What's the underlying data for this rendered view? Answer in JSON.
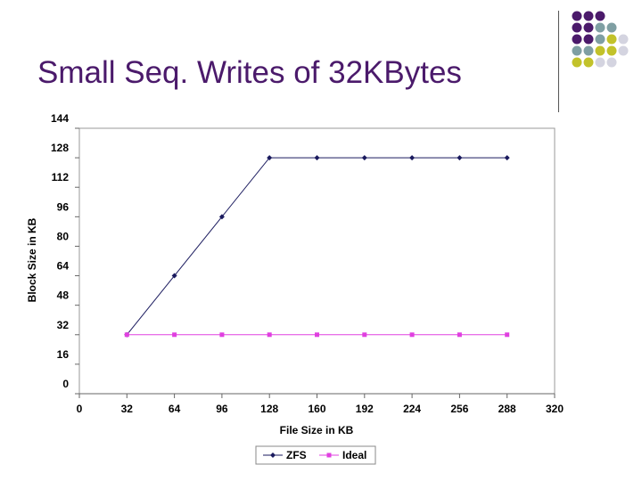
{
  "slide": {
    "title": "Small Seq. Writes of 32KBytes",
    "title_color": "#4b1a6b"
  },
  "decoration": {
    "dot_colors": [
      "#4b1a6b",
      "#7f9fa3",
      "#c2c22a",
      "#d4d4e0"
    ]
  },
  "chart_data": {
    "type": "line",
    "xlabel": "File Size in KB",
    "ylabel": "Block Size in KB",
    "xlim": [
      0,
      320
    ],
    "ylim": [
      0,
      144
    ],
    "xticks": [
      0,
      32,
      64,
      96,
      128,
      160,
      192,
      224,
      256,
      288,
      320
    ],
    "yticks": [
      0,
      16,
      32,
      48,
      64,
      80,
      96,
      112,
      128,
      144
    ],
    "grid": false,
    "legend_position": "bottom",
    "series": [
      {
        "name": "ZFS",
        "color": "#1a1a5e",
        "marker": "diamond",
        "x": [
          32,
          64,
          96,
          128,
          160,
          192,
          224,
          256,
          288
        ],
        "y": [
          32,
          64,
          96,
          128,
          128,
          128,
          128,
          128,
          128
        ]
      },
      {
        "name": "Ideal",
        "color": "#e040e0",
        "marker": "square",
        "x": [
          32,
          64,
          96,
          128,
          160,
          192,
          224,
          256,
          288
        ],
        "y": [
          32,
          32,
          32,
          32,
          32,
          32,
          32,
          32,
          32
        ]
      }
    ]
  }
}
